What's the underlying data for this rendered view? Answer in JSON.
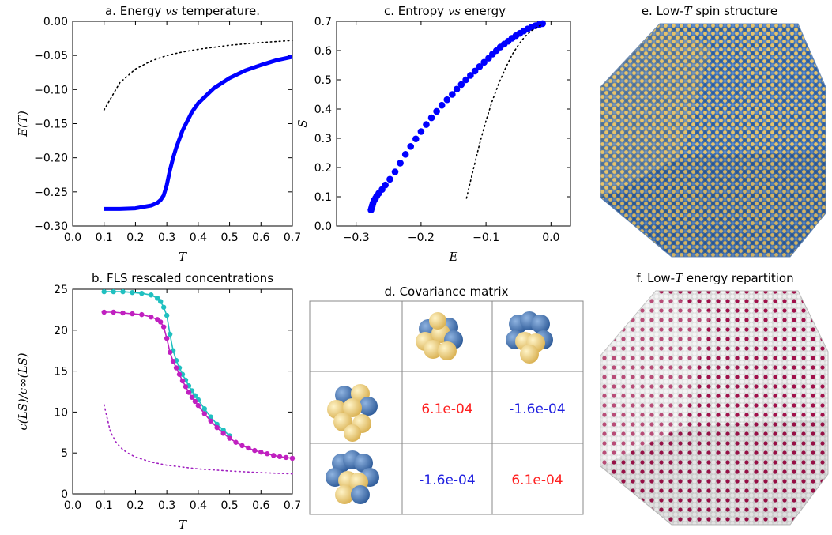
{
  "panel_a": {
    "title_pre": "a. Energy ",
    "title_it": "vs",
    "title_post": " temperature.",
    "xlabel": "T",
    "ylabel": "E(T)"
  },
  "panel_b": {
    "title": "b. FLS rescaled concentrations",
    "xlabel": "T",
    "ylabel": "c(LS)/c∞(LS)"
  },
  "panel_c": {
    "title_pre": "c. Entropy ",
    "title_it": "vs",
    "title_post": " energy",
    "xlabel": "E",
    "ylabel": "S"
  },
  "panel_d": {
    "title": "d. Covariance matrix",
    "cells": [
      [
        "6.1e-04",
        "-1.6e-04"
      ],
      [
        "-1.6e-04",
        "6.1e-04"
      ]
    ],
    "cell_colors": [
      [
        "#ff2020",
        "#2020e0"
      ],
      [
        "#2020e0",
        "#ff2020"
      ]
    ]
  },
  "panel_e": {
    "title_pre": "e. Low-",
    "title_it": "T",
    "title_post": " spin structure",
    "colors": [
      "#e8c46a",
      "#3d6fb0"
    ]
  },
  "panel_f": {
    "title_pre": "f. Low-",
    "title_it": "T",
    "title_post": " energy repartition",
    "colors": [
      "#e8e8e8",
      "#a0104a"
    ]
  },
  "chart_data": [
    {
      "type": "line",
      "id": "a",
      "title": "a. Energy vs temperature.",
      "xlabel": "T",
      "ylabel": "E(T)",
      "xlim": [
        0.0,
        0.7
      ],
      "ylim": [
        -0.3,
        0.0
      ],
      "xticks": [
        "0.0",
        "0.1",
        "0.2",
        "0.3",
        "0.4",
        "0.5",
        "0.6",
        "0.7"
      ],
      "yticks": [
        "-0.30",
        "-0.25",
        "-0.20",
        "-0.15",
        "-0.10",
        "-0.05",
        "0.00"
      ],
      "series": [
        {
          "style": "solid",
          "color": "#0000ff",
          "x": [
            0.1,
            0.15,
            0.2,
            0.25,
            0.27,
            0.28,
            0.29,
            0.3,
            0.31,
            0.32,
            0.33,
            0.35,
            0.38,
            0.4,
            0.45,
            0.5,
            0.55,
            0.6,
            0.65,
            0.7
          ],
          "y": [
            -0.275,
            -0.275,
            -0.274,
            -0.27,
            -0.266,
            -0.262,
            -0.255,
            -0.24,
            -0.218,
            -0.2,
            -0.185,
            -0.16,
            -0.133,
            -0.12,
            -0.098,
            -0.083,
            -0.072,
            -0.064,
            -0.057,
            -0.052
          ]
        },
        {
          "style": "dotted",
          "color": "#000000",
          "x": [
            0.1,
            0.15,
            0.2,
            0.25,
            0.3,
            0.35,
            0.4,
            0.5,
            0.6,
            0.7
          ],
          "y": [
            -0.13,
            -0.09,
            -0.07,
            -0.058,
            -0.05,
            -0.045,
            -0.041,
            -0.035,
            -0.031,
            -0.028
          ]
        }
      ]
    },
    {
      "type": "line",
      "id": "b",
      "title": "b. FLS rescaled concentrations",
      "xlabel": "T",
      "ylabel": "c(LS)/c∞(LS)",
      "xlim": [
        0.0,
        0.7
      ],
      "ylim": [
        0,
        25
      ],
      "xticks": [
        "0.0",
        "0.1",
        "0.2",
        "0.3",
        "0.4",
        "0.5",
        "0.6",
        "0.7"
      ],
      "yticks": [
        "0",
        "5",
        "10",
        "15",
        "20",
        "25"
      ],
      "series": [
        {
          "style": "line-marker",
          "color": "#20c0c0",
          "x": [
            0.1,
            0.13,
            0.16,
            0.19,
            0.22,
            0.25,
            0.27,
            0.28,
            0.29,
            0.3,
            0.31,
            0.32,
            0.33,
            0.34,
            0.35,
            0.36,
            0.37,
            0.38,
            0.39,
            0.4,
            0.42,
            0.44,
            0.46,
            0.48,
            0.5
          ],
          "y": [
            24.7,
            24.7,
            24.7,
            24.6,
            24.5,
            24.3,
            23.9,
            23.5,
            22.8,
            21.8,
            19.5,
            17.5,
            16.3,
            15.4,
            14.6,
            13.9,
            13.2,
            12.6,
            12.0,
            11.5,
            10.4,
            9.4,
            8.5,
            7.8,
            7.1
          ]
        },
        {
          "style": "line-marker",
          "color": "#c020c0",
          "x": [
            0.1,
            0.13,
            0.16,
            0.19,
            0.22,
            0.25,
            0.27,
            0.28,
            0.29,
            0.3,
            0.31,
            0.32,
            0.33,
            0.34,
            0.35,
            0.36,
            0.37,
            0.38,
            0.39,
            0.4,
            0.42,
            0.44,
            0.46,
            0.48,
            0.5,
            0.52,
            0.54,
            0.56,
            0.58,
            0.6,
            0.62,
            0.64,
            0.66,
            0.68,
            0.7
          ],
          "y": [
            22.2,
            22.2,
            22.1,
            22.0,
            21.9,
            21.6,
            21.3,
            21.0,
            20.4,
            19.0,
            17.3,
            16.2,
            15.4,
            14.6,
            13.8,
            13.1,
            12.4,
            11.8,
            11.3,
            10.8,
            9.8,
            8.9,
            8.1,
            7.4,
            6.8,
            6.3,
            5.9,
            5.6,
            5.3,
            5.1,
            4.9,
            4.7,
            4.55,
            4.45,
            4.35
          ]
        },
        {
          "style": "dotted",
          "color": "#a020c0",
          "x": [
            0.1,
            0.12,
            0.14,
            0.16,
            0.18,
            0.2,
            0.25,
            0.3,
            0.4,
            0.5,
            0.6,
            0.7
          ],
          "y": [
            10.9,
            7.6,
            6.2,
            5.4,
            4.9,
            4.5,
            3.9,
            3.5,
            3.05,
            2.8,
            2.6,
            2.45
          ]
        }
      ]
    },
    {
      "type": "scatter",
      "id": "c",
      "title": "c. Entropy vs energy",
      "xlabel": "E",
      "ylabel": "S",
      "xlim": [
        -0.33,
        0.03
      ],
      "ylim": [
        0.0,
        0.7
      ],
      "xticks": [
        "-0.3",
        "-0.2",
        "-0.1",
        "0.0"
      ],
      "yticks": [
        "0.0",
        "0.1",
        "0.2",
        "0.3",
        "0.4",
        "0.5",
        "0.6",
        "0.7"
      ],
      "series": [
        {
          "style": "markers",
          "color": "#0000ff",
          "x": [
            -0.277,
            -0.276,
            -0.275,
            -0.274,
            -0.272,
            -0.27,
            -0.268,
            -0.265,
            -0.26,
            -0.255,
            -0.248,
            -0.24,
            -0.232,
            -0.224,
            -0.216,
            -0.208,
            -0.2,
            -0.192,
            -0.184,
            -0.176,
            -0.168,
            -0.16,
            -0.152,
            -0.145,
            -0.138,
            -0.131,
            -0.124,
            -0.117,
            -0.11,
            -0.103,
            -0.096,
            -0.09,
            -0.084,
            -0.078,
            -0.072,
            -0.066,
            -0.06,
            -0.054,
            -0.048,
            -0.042,
            -0.036,
            -0.03,
            -0.024,
            -0.018,
            -0.013
          ],
          "y": [
            0.055,
            0.062,
            0.07,
            0.078,
            0.088,
            0.095,
            0.103,
            0.112,
            0.125,
            0.14,
            0.16,
            0.185,
            0.215,
            0.245,
            0.272,
            0.298,
            0.323,
            0.347,
            0.37,
            0.392,
            0.413,
            0.432,
            0.45,
            0.468,
            0.484,
            0.5,
            0.515,
            0.53,
            0.545,
            0.56,
            0.574,
            0.588,
            0.6,
            0.612,
            0.622,
            0.632,
            0.642,
            0.651,
            0.659,
            0.667,
            0.674,
            0.68,
            0.685,
            0.689,
            0.692
          ]
        },
        {
          "style": "dotted",
          "color": "#000000",
          "x": [
            -0.13,
            -0.12,
            -0.11,
            -0.1,
            -0.09,
            -0.08,
            -0.07,
            -0.06,
            -0.05,
            -0.04,
            -0.03,
            -0.02,
            -0.013
          ],
          "y": [
            0.095,
            0.19,
            0.28,
            0.36,
            0.43,
            0.49,
            0.54,
            0.585,
            0.62,
            0.648,
            0.668,
            0.682,
            0.69
          ]
        }
      ]
    }
  ]
}
